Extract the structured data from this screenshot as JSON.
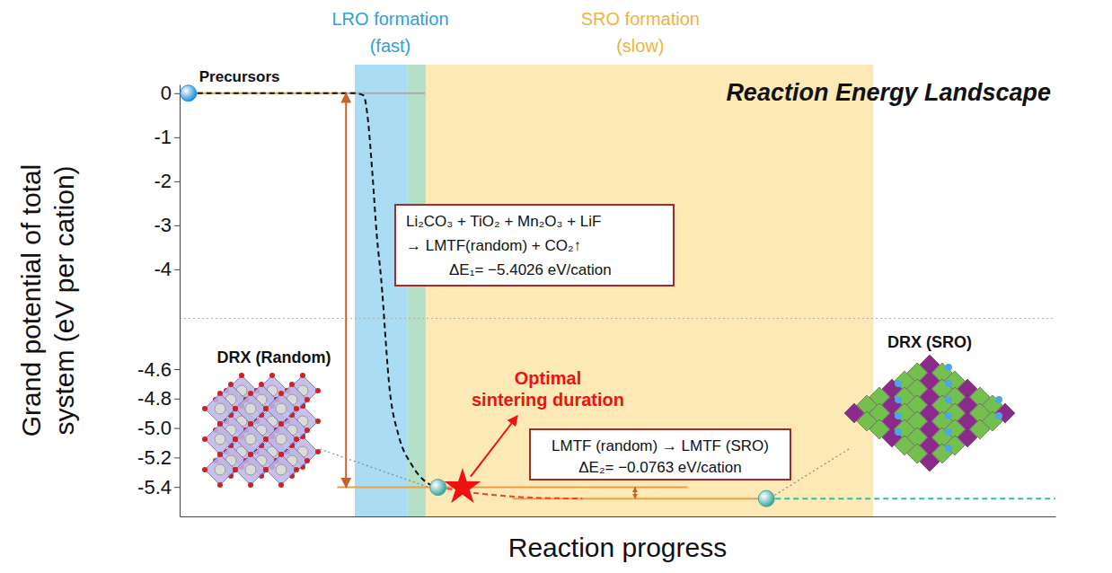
{
  "chart_data": {
    "type": "line",
    "title": "Reaction Energy Landscape",
    "x_label": "Reaction progress",
    "y_label": "Grand potential of total system (eV per cation)",
    "xlim": [
      0,
      100
    ],
    "ylim": [
      -5.6,
      0.2
    ],
    "axis_break": [
      -4.5,
      -4.3
    ],
    "yticks": [
      0,
      -1,
      -2,
      -3,
      -4,
      -4.6,
      -4.8,
      {
        "value": -5,
        "label": "-5.0"
      },
      -5.2,
      -5.4
    ],
    "tick_labels": "y",
    "grid": false,
    "bands": [
      {
        "label": "LRO formation (fast)",
        "x": [
          20,
          28.1
        ],
        "color": "#aadcf3"
      },
      {
        "label": "SRO formation (slow)",
        "x": [
          26,
          79.2
        ],
        "color": "#fde9b6"
      }
    ],
    "series": [
      {
        "color": "#111111",
        "line_style": "dashed",
        "x": [
          1,
          20,
          21,
          21.5,
          22,
          22.5,
          23,
          24,
          25,
          26.5,
          28,
          29.5
        ],
        "values": [
          0,
          0,
          -0.05,
          -0.6,
          -1.8,
          -3.2,
          -4.2,
          -4.75,
          -5.05,
          -5.25,
          -5.36,
          -5.4026
        ]
      },
      {
        "color": "#e8452c",
        "line_style": "dashed",
        "x": [
          29.5,
          31,
          33,
          36,
          40,
          46
        ],
        "values": [
          -5.4026,
          -5.415,
          -5.435,
          -5.455,
          -5.472,
          -5.4789
        ]
      },
      {
        "color": "#2bbfa6",
        "line_style": "dashed",
        "x": [
          67,
          100
        ],
        "values": [
          -5.4789,
          -5.4789
        ]
      }
    ],
    "levels": [
      {
        "value": 0,
        "x": [
          1,
          19
        ],
        "color": "#e8a04a"
      },
      {
        "value": 0,
        "x": [
          19,
          28
        ],
        "color": "#aaaaaa"
      },
      {
        "value": -5.4026,
        "x": [
          18,
          58
        ],
        "color": "#e8a04a"
      },
      {
        "value": -5.4789,
        "x": [
          38,
          67
        ],
        "color": "#e8a04a"
      }
    ],
    "points": [
      {
        "label": "Precursors",
        "x": 1,
        "value": 0,
        "color": "#1e90e0"
      },
      {
        "label": "DRX (Random)",
        "x": 29.5,
        "value": -5.4026,
        "color": "#3aa6a0"
      },
      {
        "label": "DRX (SRO)",
        "x": 67,
        "value": -5.4789,
        "color": "#3aa6a0"
      }
    ],
    "star": {
      "label": "Optimal sintering duration",
      "x": 32.3,
      "value": -5.4026,
      "color": "#ee1111"
    },
    "reactions": [
      {
        "lines": [
          "Li₂CO₃ + TiO₂ + Mn₂O₃ + LiF",
          "→ LMTF(random) + CO₂↑"
        ],
        "delta_label": "ΔE₁= −5.4026 eV/cation",
        "from": 0,
        "to": -5.4026,
        "x": 19
      },
      {
        "lines": [
          "LMTF (random) → LMTF (SRO)"
        ],
        "delta_label": "ΔE₂= −0.0763 eV/cation",
        "from": -5.4026,
        "to": -5.4789,
        "x": 52
      }
    ]
  }
}
